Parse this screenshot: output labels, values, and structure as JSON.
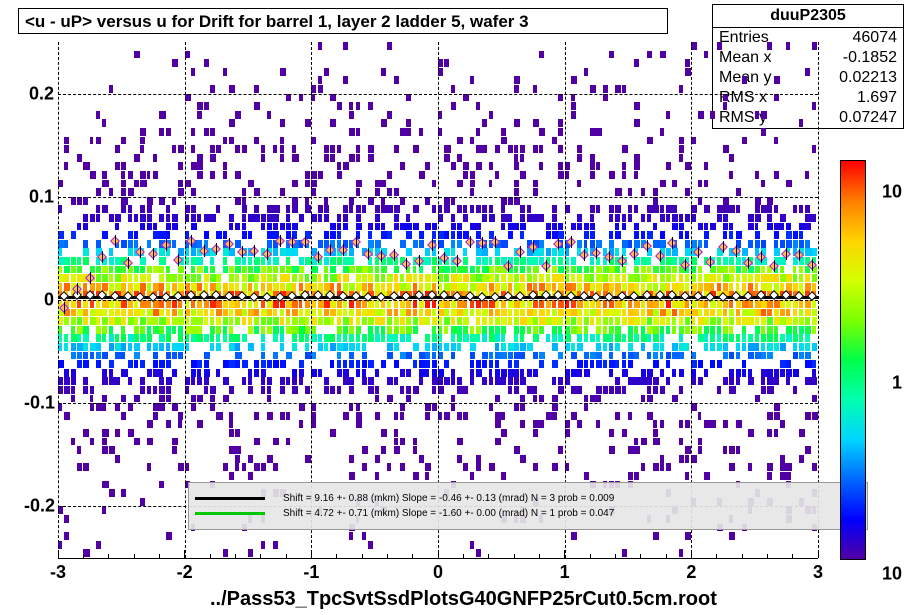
{
  "title": "<u - uP>       versus   u for Drift for barrel 1, layer 2 ladder 5, wafer 3",
  "stats": {
    "name": "duuP2305",
    "rows": [
      {
        "k": "Entries",
        "v": "46074"
      },
      {
        "k": "Mean x",
        "v": "-0.1852"
      },
      {
        "k": "Mean y",
        "v": "0.02213"
      },
      {
        "k": "RMS x",
        "v": "1.697"
      },
      {
        "k": "RMS y",
        "v": "0.07247"
      }
    ]
  },
  "file_label": "../Pass53_TpcSvtSsdPlotsG40GNFP25rCut0.5cm.root",
  "chart": {
    "type": "heatmap",
    "xlim": [
      -3,
      3
    ],
    "ylim": [
      -0.25,
      0.25
    ],
    "xticks": [
      -3,
      -2,
      -1,
      0,
      1,
      2,
      3
    ],
    "yticks": [
      -0.2,
      -0.1,
      0,
      0.1,
      0.2
    ],
    "grid_color": "#000000",
    "background_color": "#ffffff",
    "heatmap_bins_x": 120,
    "heatmap_bins_y": 60,
    "axis_fontsize": 18
  },
  "colorbar": {
    "scale": "log",
    "labels": [
      {
        "v": "10",
        "frac": 0.08
      },
      {
        "v": "1",
        "frac": 0.56
      },
      {
        "v": "10",
        "frac": 1.04
      }
    ],
    "stops": [
      {
        "h": 0.0,
        "c": "#ff0000"
      },
      {
        "h": 0.1,
        "c": "#ff7d00"
      },
      {
        "h": 0.2,
        "c": "#ffd400"
      },
      {
        "h": 0.3,
        "c": "#d4ff00"
      },
      {
        "h": 0.4,
        "c": "#7cff00"
      },
      {
        "h": 0.5,
        "c": "#00ff49"
      },
      {
        "h": 0.6,
        "c": "#00ffb0"
      },
      {
        "h": 0.7,
        "c": "#00d4ff"
      },
      {
        "h": 0.8,
        "c": "#0068ff"
      },
      {
        "h": 0.9,
        "c": "#0000ff"
      },
      {
        "h": 1.0,
        "c": "#5100a3"
      }
    ]
  },
  "fits": [
    {
      "color": "#000000",
      "text": "Shift =      9.16 +- 0.88 (mkm) Slope =     -0.46 +- 0.13 (mrad)  N = 3 prob = 0.009"
    },
    {
      "color": "#00c800",
      "text": "Shift =      4.72 +- 0.71 (mkm) Slope =     -1.60 +- 0.00 (mrad)  N = 1 prob = 0.047"
    }
  ],
  "profile_black": {
    "y": 0.004,
    "n": 60
  },
  "profile_color": {
    "n": 60,
    "y_base": 0.045,
    "y_amp": 0.013
  }
}
